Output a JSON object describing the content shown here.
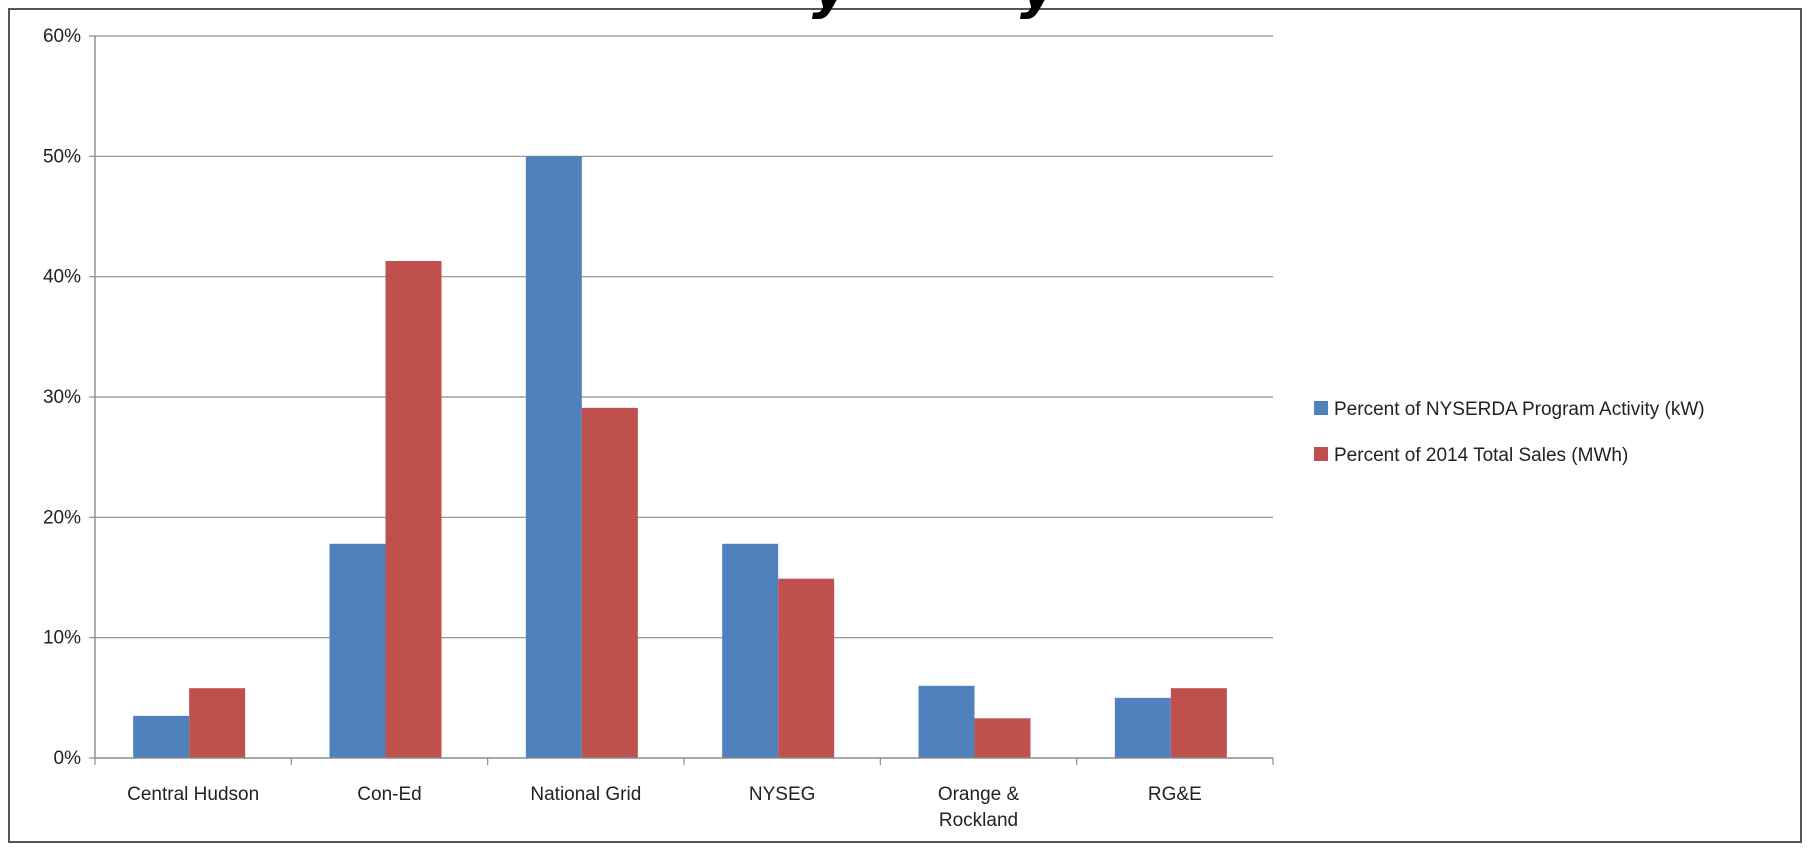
{
  "chart_data": {
    "type": "bar",
    "title": "",
    "xlabel": "",
    "ylabel": "",
    "categories": [
      [
        "Central Hudson"
      ],
      [
        "Con-Ed"
      ],
      [
        "National Grid"
      ],
      [
        "NYSEG"
      ],
      [
        "Orange &",
        "Rockland"
      ],
      [
        "RG&E"
      ]
    ],
    "series": [
      {
        "name": "Percent of NYSERDA Program Activity (kW)",
        "color": "#4f81bd",
        "values": [
          3.5,
          17.8,
          50.0,
          17.8,
          6.0,
          5.0
        ]
      },
      {
        "name": "Percent of 2014 Total Sales (MWh)",
        "color": "#c0504d",
        "values": [
          5.8,
          41.3,
          29.1,
          14.9,
          3.3,
          5.8
        ]
      }
    ],
    "ylim": [
      0,
      60
    ],
    "yticks": [
      "0%",
      "10%",
      "20%",
      "30%",
      "40%",
      "50%",
      "60%"
    ],
    "grid": true,
    "legend": "right"
  }
}
